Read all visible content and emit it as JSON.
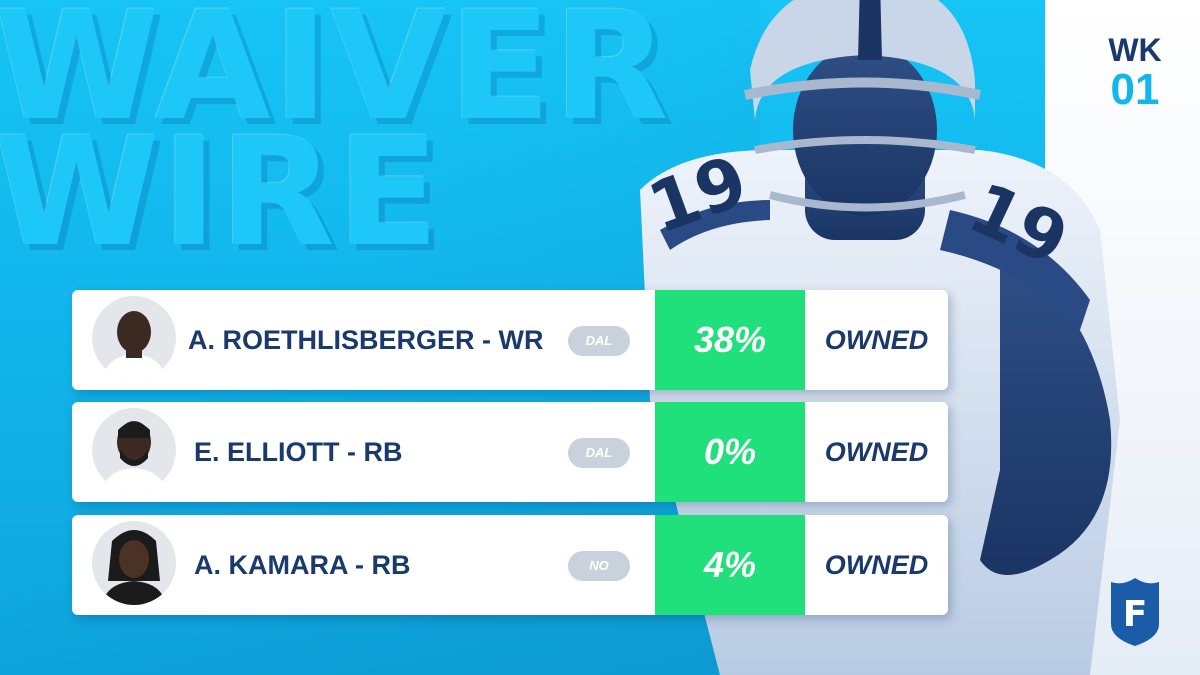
{
  "title": {
    "line1": "WAIVER",
    "line2": "WIRE"
  },
  "week": {
    "label": "WK",
    "number": "01"
  },
  "colors": {
    "background": "#12b6ec",
    "navy": "#1a3a6e",
    "green": "#1fe07a",
    "badge": "#c9d2dc"
  },
  "players": [
    {
      "name": "A. ROETHLISBERGER - WR",
      "team": "DAL",
      "owned_pct": "38%",
      "owned_label": "OWNED"
    },
    {
      "name": "E. ELLIOTT - RB",
      "team": "DAL",
      "owned_pct": "0%",
      "owned_label": "OWNED"
    },
    {
      "name": "A. KAMARA - RB",
      "team": "NO",
      "owned_pct": "4%",
      "owned_label": "OWNED"
    }
  ],
  "brand": {
    "logo_letter": "F",
    "logo_icon": "fanduel-shield-icon"
  }
}
